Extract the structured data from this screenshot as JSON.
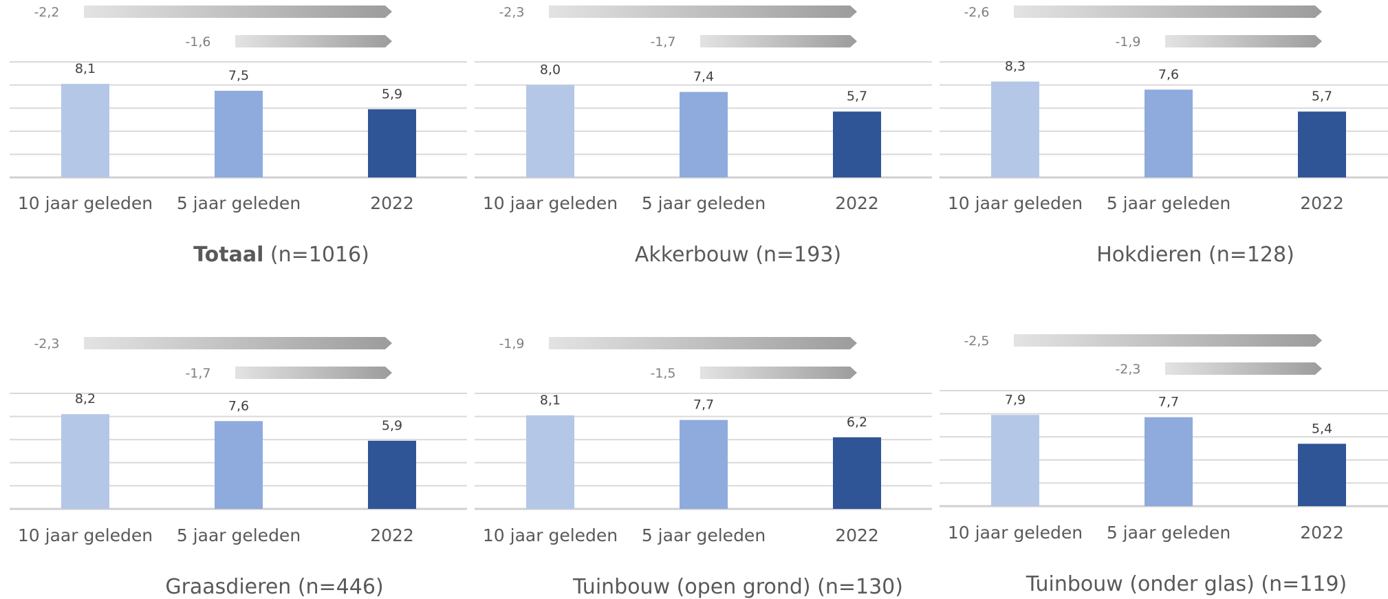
{
  "chart_data": [
    {
      "type": "bar",
      "title_bold": "Totaal",
      "title_rest": " (n=1016)",
      "categories": [
        "10 jaar geleden",
        "5 jaar geleden",
        "2022"
      ],
      "values": [
        8.1,
        7.5,
        5.9
      ],
      "value_labels": [
        "8,1",
        "7,5",
        "5,9"
      ],
      "changes": [
        {
          "from": "10 jaar geleden",
          "to": "2022",
          "value": -2.2,
          "label": "-2,2"
        },
        {
          "from": "5 jaar geleden",
          "to": "2022",
          "value": -1.6,
          "label": "-1,6"
        }
      ],
      "colors": [
        "#b4c7e7",
        "#8faadc",
        "#2f5597"
      ],
      "ylim": [
        0,
        10
      ],
      "grid": true
    },
    {
      "type": "bar",
      "title_bold": "",
      "title_rest": "Akkerbouw (n=193)",
      "categories": [
        "10 jaar geleden",
        "5 jaar geleden",
        "2022"
      ],
      "values": [
        8.0,
        7.4,
        5.7
      ],
      "value_labels": [
        "8,0",
        "7,4",
        "5,7"
      ],
      "changes": [
        {
          "from": "10 jaar geleden",
          "to": "2022",
          "value": -2.3,
          "label": "-2,3"
        },
        {
          "from": "5 jaar geleden",
          "to": "2022",
          "value": -1.7,
          "label": "-1,7"
        }
      ],
      "colors": [
        "#b4c7e7",
        "#8faadc",
        "#2f5597"
      ],
      "ylim": [
        0,
        10
      ],
      "grid": true
    },
    {
      "type": "bar",
      "title_bold": "",
      "title_rest": "Hokdieren (n=128)",
      "categories": [
        "10 jaar geleden",
        "5 jaar geleden",
        "2022"
      ],
      "values": [
        8.3,
        7.6,
        5.7
      ],
      "value_labels": [
        "8,3",
        "7,6",
        "5,7"
      ],
      "changes": [
        {
          "from": "10 jaar geleden",
          "to": "2022",
          "value": -2.6,
          "label": "-2,6"
        },
        {
          "from": "5 jaar geleden",
          "to": "2022",
          "value": -1.9,
          "label": "-1,9"
        }
      ],
      "colors": [
        "#b4c7e7",
        "#8faadc",
        "#2f5597"
      ],
      "ylim": [
        0,
        10
      ],
      "grid": true
    },
    {
      "type": "bar",
      "title_bold": "",
      "title_rest": "Graasdieren (n=446)",
      "categories": [
        "10 jaar geleden",
        "5 jaar geleden",
        "2022"
      ],
      "values": [
        8.2,
        7.6,
        5.9
      ],
      "value_labels": [
        "8,2",
        "7,6",
        "5,9"
      ],
      "changes": [
        {
          "from": "10 jaar geleden",
          "to": "2022",
          "value": -2.3,
          "label": "-2,3"
        },
        {
          "from": "5 jaar geleden",
          "to": "2022",
          "value": -1.7,
          "label": "-1,7"
        }
      ],
      "colors": [
        "#b4c7e7",
        "#8faadc",
        "#2f5597"
      ],
      "ylim": [
        0,
        10
      ],
      "grid": true
    },
    {
      "type": "bar",
      "title_bold": "",
      "title_rest": "Tuinbouw (open grond) (n=130)",
      "categories": [
        "10 jaar geleden",
        "5 jaar geleden",
        "2022"
      ],
      "values": [
        8.1,
        7.7,
        6.2
      ],
      "value_labels": [
        "8,1",
        "7,7",
        "6,2"
      ],
      "changes": [
        {
          "from": "10 jaar geleden",
          "to": "2022",
          "value": -1.9,
          "label": "-1,9"
        },
        {
          "from": "5 jaar geleden",
          "to": "2022",
          "value": -1.5,
          "label": "-1,5"
        }
      ],
      "colors": [
        "#b4c7e7",
        "#8faadc",
        "#2f5597"
      ],
      "ylim": [
        0,
        10
      ],
      "grid": true
    },
    {
      "type": "bar",
      "title_bold": "",
      "title_rest": "Tuinbouw (onder glas) (n=119)",
      "categories": [
        "10 jaar geleden",
        "5 jaar geleden",
        "2022"
      ],
      "values": [
        7.9,
        7.7,
        5.4
      ],
      "value_labels": [
        "7,9",
        "7,7",
        "5,4"
      ],
      "changes": [
        {
          "from": "10 jaar geleden",
          "to": "2022",
          "value": -2.5,
          "label": "-2,5"
        },
        {
          "from": "5 jaar geleden",
          "to": "2022",
          "value": -2.3,
          "label": "-2,3"
        }
      ],
      "colors": [
        "#b4c7e7",
        "#8faadc",
        "#2f5597"
      ],
      "ylim": [
        0,
        10
      ],
      "grid": true
    }
  ]
}
